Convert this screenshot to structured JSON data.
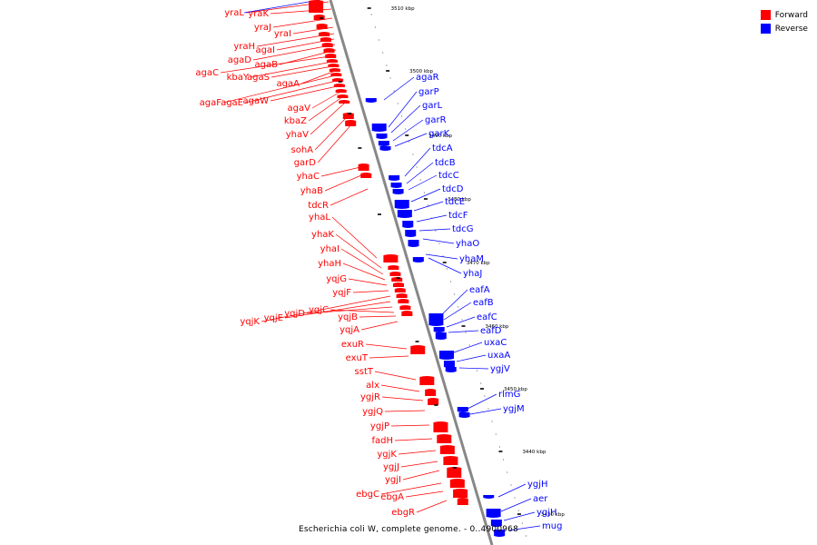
{
  "legend": {
    "forward_label": "Forward",
    "reverse_label": "Reverse",
    "forward_color": "#ff0000",
    "reverse_color": "#0000ff"
  },
  "caption": "Escherichia coli W, complete genome. - 0..4900968",
  "axis": {
    "tick_labels": [
      "3510 kbp",
      "3500 kbp",
      "3490 kbp",
      "3480 kbp",
      "3470 kbp",
      "3460 kbp",
      "3450 kbp",
      "3440 kbp",
      "3430 kbp"
    ]
  },
  "forward_genes": [
    "yraL",
    "yraK",
    "yraJ",
    "yraI",
    "yraH",
    "agaI",
    "agaD",
    "agaB",
    "agaC",
    "kbaY",
    "agaS",
    "agaA",
    "agaF",
    "agaE",
    "agaW",
    "agaV",
    "kbaZ",
    "yhaV",
    "sohA",
    "garD",
    "yhaC",
    "yhaB",
    "tdcR",
    "yhaL",
    "yhaK",
    "yhaI",
    "yhaH",
    "yqjG",
    "yqjF",
    "yqjK",
    "yqjE",
    "yqjD",
    "yqjC",
    "yqjB",
    "yqjA",
    "exuR",
    "exuT",
    "sstT",
    "alx",
    "ygjR",
    "ygjQ",
    "ygjP",
    "fadH",
    "ygjK",
    "ygjJ",
    "ygjI",
    "ebgC",
    "ebgA",
    "ebgR"
  ],
  "reverse_genes": [
    "agaR",
    "garP",
    "garL",
    "garR",
    "garK",
    "tdcA",
    "tdcB",
    "tdcC",
    "tdcD",
    "tdcE",
    "tdcF",
    "tdcG",
    "yhaO",
    "yhaM",
    "yhaJ",
    "eafA",
    "eafB",
    "eafC",
    "eafD",
    "uxaC",
    "uxaA",
    "ygjV",
    "rlmG",
    "ygjM",
    "ygjH",
    "aer",
    "ygjH",
    "mug"
  ]
}
